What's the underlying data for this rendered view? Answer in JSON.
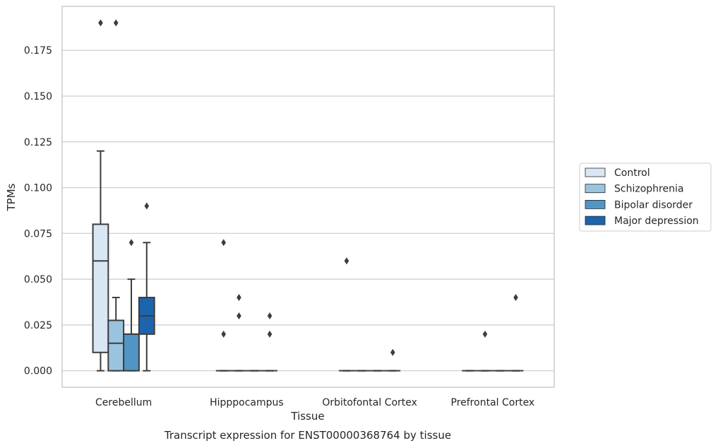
{
  "chart_data": {
    "type": "box",
    "title": "Transcript expression for ENST00000368764 by tissue",
    "xlabel": "Tissue",
    "ylabel": "TPMs",
    "ylim": [
      -0.009,
      0.199
    ],
    "yticks": [
      0.0,
      0.025,
      0.05,
      0.075,
      0.1,
      0.125,
      0.15,
      0.175
    ],
    "ytick_labels": [
      "0.000",
      "0.025",
      "0.050",
      "0.075",
      "0.100",
      "0.125",
      "0.150",
      "0.175"
    ],
    "grid": "horizontal",
    "legend_position": "right",
    "categories": [
      "Cerebellum",
      "Hipppocampus",
      "Orbitofontal Cortex",
      "Prefrontal Cortex"
    ],
    "series": [
      {
        "name": "Control",
        "color": "#d9e7f4",
        "boxes": [
          {
            "whislo": 0.0,
            "q1": 0.01,
            "med": 0.06,
            "q3": 0.08,
            "whishi": 0.12,
            "fliers": [
              0.19
            ]
          },
          {
            "whislo": 0.0,
            "q1": 0.0,
            "med": 0.0,
            "q3": 0.0,
            "whishi": 0.0,
            "fliers": [
              0.07,
              0.02
            ]
          },
          {
            "whislo": 0.0,
            "q1": 0.0,
            "med": 0.0,
            "q3": 0.0,
            "whishi": 0.0,
            "fliers": [
              0.06
            ]
          },
          {
            "whislo": 0.0,
            "q1": 0.0,
            "med": 0.0,
            "q3": 0.0,
            "whishi": 0.0,
            "fliers": []
          }
        ]
      },
      {
        "name": "Schizophrenia",
        "color": "#9ac4de",
        "boxes": [
          {
            "whislo": 0.0,
            "q1": 0.0,
            "med": 0.015,
            "q3": 0.0275,
            "whishi": 0.04,
            "fliers": [
              0.19
            ]
          },
          {
            "whislo": 0.0,
            "q1": 0.0,
            "med": 0.0,
            "q3": 0.0,
            "whishi": 0.0,
            "fliers": [
              0.04,
              0.03
            ]
          },
          {
            "whislo": 0.0,
            "q1": 0.0,
            "med": 0.0,
            "q3": 0.0,
            "whishi": 0.0,
            "fliers": []
          },
          {
            "whislo": 0.0,
            "q1": 0.0,
            "med": 0.0,
            "q3": 0.0,
            "whishi": 0.0,
            "fliers": [
              0.02
            ]
          }
        ]
      },
      {
        "name": "Bipolar disorder",
        "color": "#5195c5",
        "boxes": [
          {
            "whislo": 0.0,
            "q1": 0.0,
            "med": 0.02,
            "q3": 0.02,
            "whishi": 0.05,
            "fliers": [
              0.07
            ]
          },
          {
            "whislo": 0.0,
            "q1": 0.0,
            "med": 0.0,
            "q3": 0.0,
            "whishi": 0.0,
            "fliers": []
          },
          {
            "whislo": 0.0,
            "q1": 0.0,
            "med": 0.0,
            "q3": 0.0,
            "whishi": 0.0,
            "fliers": []
          },
          {
            "whislo": 0.0,
            "q1": 0.0,
            "med": 0.0,
            "q3": 0.0,
            "whishi": 0.0,
            "fliers": []
          }
        ]
      },
      {
        "name": "Major depression",
        "color": "#1c64ac",
        "boxes": [
          {
            "whislo": 0.0,
            "q1": 0.02,
            "med": 0.03,
            "q3": 0.04,
            "whishi": 0.07,
            "fliers": [
              0.09
            ]
          },
          {
            "whislo": 0.0,
            "q1": 0.0,
            "med": 0.0,
            "q3": 0.0,
            "whishi": 0.0,
            "fliers": [
              0.03,
              0.02
            ]
          },
          {
            "whislo": 0.0,
            "q1": 0.0,
            "med": 0.0,
            "q3": 0.0,
            "whishi": 0.0,
            "fliers": [
              0.01
            ]
          },
          {
            "whislo": 0.0,
            "q1": 0.0,
            "med": 0.0,
            "q3": 0.0,
            "whishi": 0.0,
            "fliers": [
              0.04
            ]
          }
        ]
      }
    ],
    "colors": {
      "grid": "#cccccc",
      "frame": "#cccccc",
      "box_edge": "#3d3d3d",
      "text": "#262626"
    }
  }
}
